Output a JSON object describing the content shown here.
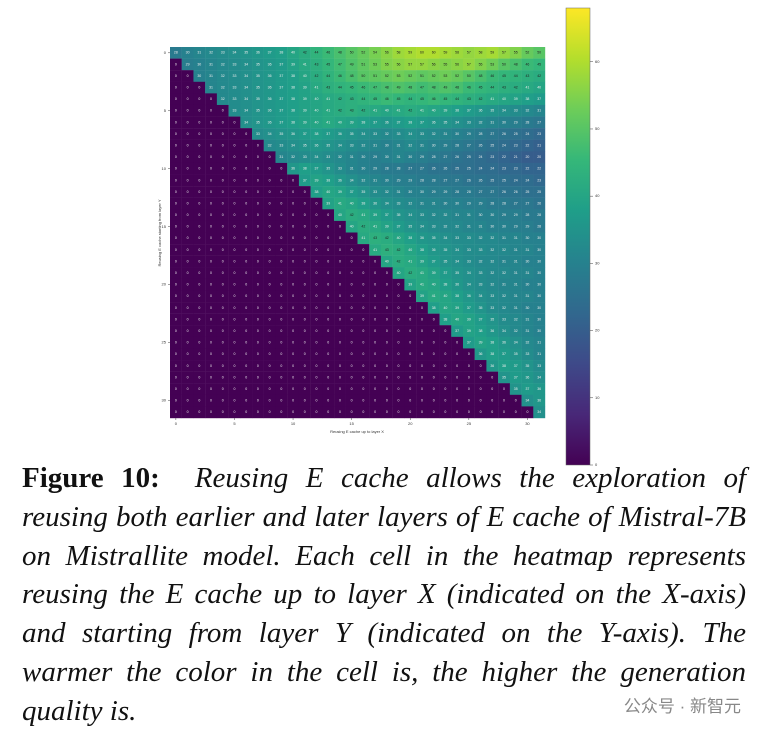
{
  "chart_data": {
    "type": "heatmap",
    "x_label": "Reusing E cache up to layer X",
    "y_label": "Reusing E cache starting from layer Y",
    "xlim": [
      -0.5,
      31.5
    ],
    "ylim": [
      -0.5,
      31.5
    ],
    "xticks": [
      0,
      5,
      10,
      15,
      20,
      25,
      30
    ],
    "yticks": [
      0,
      5,
      10,
      15,
      20,
      25,
      30
    ],
    "colormap": "viridis",
    "zlim": [
      0,
      68
    ],
    "zticks": [
      0,
      10,
      20,
      30,
      40,
      50,
      60
    ],
    "z": [
      [
        28,
        30,
        31,
        32,
        33,
        34,
        35,
        36,
        37,
        38,
        40,
        42,
        44,
        46,
        48,
        50,
        52,
        54,
        56,
        58,
        59,
        60,
        60,
        59,
        58,
        57,
        58,
        59,
        57,
        55,
        52,
        50
      ],
      [
        0,
        29,
        30,
        31,
        32,
        33,
        34,
        35,
        36,
        37,
        39,
        41,
        43,
        45,
        47,
        49,
        51,
        53,
        55,
        56,
        57,
        57,
        56,
        55,
        56,
        57,
        55,
        53,
        50,
        48,
        46,
        45
      ],
      [
        0,
        0,
        30,
        31,
        32,
        33,
        34,
        35,
        36,
        37,
        38,
        40,
        42,
        44,
        46,
        48,
        50,
        51,
        52,
        53,
        52,
        51,
        52,
        53,
        52,
        50,
        48,
        46,
        45,
        44,
        43,
        42
      ],
      [
        0,
        0,
        0,
        31,
        32,
        33,
        34,
        35,
        36,
        37,
        38,
        39,
        41,
        43,
        44,
        45,
        46,
        47,
        48,
        49,
        48,
        47,
        48,
        49,
        48,
        46,
        45,
        44,
        43,
        42,
        41,
        40
      ],
      [
        0,
        0,
        0,
        0,
        32,
        33,
        34,
        35,
        36,
        37,
        38,
        39,
        40,
        41,
        42,
        43,
        44,
        45,
        46,
        45,
        44,
        45,
        46,
        45,
        44,
        43,
        42,
        41,
        40,
        39,
        38,
        37
      ],
      [
        0,
        0,
        0,
        0,
        0,
        33,
        34,
        35,
        36,
        37,
        38,
        39,
        40,
        41,
        42,
        43,
        42,
        41,
        40,
        41,
        42,
        41,
        40,
        39,
        38,
        37,
        36,
        35,
        34,
        33,
        32,
        31
      ],
      [
        0,
        0,
        0,
        0,
        0,
        0,
        34,
        35,
        36,
        37,
        38,
        39,
        40,
        41,
        40,
        39,
        38,
        37,
        36,
        37,
        38,
        37,
        36,
        35,
        34,
        33,
        32,
        31,
        30,
        29,
        28,
        27
      ],
      [
        0,
        0,
        0,
        0,
        0,
        0,
        0,
        33,
        34,
        35,
        36,
        37,
        38,
        37,
        36,
        35,
        34,
        33,
        32,
        33,
        34,
        33,
        32,
        31,
        30,
        29,
        28,
        27,
        26,
        25,
        24,
        23
      ],
      [
        0,
        0,
        0,
        0,
        0,
        0,
        0,
        0,
        32,
        33,
        34,
        35,
        36,
        35,
        34,
        33,
        32,
        31,
        30,
        31,
        32,
        31,
        30,
        29,
        28,
        27,
        26,
        25,
        24,
        23,
        22,
        21
      ],
      [
        0,
        0,
        0,
        0,
        0,
        0,
        0,
        0,
        0,
        31,
        32,
        33,
        34,
        33,
        32,
        31,
        30,
        29,
        30,
        31,
        30,
        29,
        28,
        27,
        26,
        25,
        24,
        23,
        22,
        21,
        20,
        20
      ],
      [
        0,
        0,
        0,
        0,
        0,
        0,
        0,
        0,
        0,
        0,
        36,
        38,
        37,
        35,
        33,
        31,
        30,
        29,
        28,
        28,
        27,
        27,
        26,
        26,
        25,
        25,
        24,
        24,
        23,
        23,
        22,
        22
      ],
      [
        0,
        0,
        0,
        0,
        0,
        0,
        0,
        0,
        0,
        0,
        0,
        37,
        39,
        38,
        36,
        34,
        32,
        31,
        30,
        29,
        29,
        28,
        28,
        27,
        27,
        26,
        26,
        25,
        25,
        24,
        24,
        23
      ],
      [
        0,
        0,
        0,
        0,
        0,
        0,
        0,
        0,
        0,
        0,
        0,
        0,
        38,
        40,
        39,
        37,
        35,
        33,
        32,
        31,
        30,
        30,
        29,
        29,
        28,
        28,
        27,
        27,
        26,
        26,
        25,
        25
      ],
      [
        0,
        0,
        0,
        0,
        0,
        0,
        0,
        0,
        0,
        0,
        0,
        0,
        0,
        39,
        41,
        40,
        38,
        36,
        34,
        33,
        32,
        31,
        31,
        30,
        30,
        29,
        29,
        28,
        28,
        27,
        27,
        26
      ],
      [
        0,
        0,
        0,
        0,
        0,
        0,
        0,
        0,
        0,
        0,
        0,
        0,
        0,
        0,
        40,
        42,
        41,
        39,
        37,
        35,
        34,
        33,
        32,
        32,
        31,
        31,
        30,
        30,
        29,
        29,
        28,
        28
      ],
      [
        0,
        0,
        0,
        0,
        0,
        0,
        0,
        0,
        0,
        0,
        0,
        0,
        0,
        0,
        0,
        40,
        42,
        41,
        39,
        37,
        35,
        34,
        33,
        32,
        32,
        31,
        31,
        30,
        30,
        29,
        29,
        28
      ],
      [
        0,
        0,
        0,
        0,
        0,
        0,
        0,
        0,
        0,
        0,
        0,
        0,
        0,
        0,
        0,
        0,
        41,
        43,
        42,
        40,
        38,
        36,
        35,
        34,
        33,
        33,
        32,
        32,
        31,
        31,
        30,
        30
      ],
      [
        0,
        0,
        0,
        0,
        0,
        0,
        0,
        0,
        0,
        0,
        0,
        0,
        0,
        0,
        0,
        0,
        0,
        41,
        43,
        42,
        40,
        38,
        36,
        35,
        34,
        33,
        33,
        32,
        32,
        31,
        31,
        30
      ],
      [
        0,
        0,
        0,
        0,
        0,
        0,
        0,
        0,
        0,
        0,
        0,
        0,
        0,
        0,
        0,
        0,
        0,
        0,
        40,
        42,
        41,
        39,
        37,
        35,
        34,
        33,
        32,
        32,
        31,
        31,
        30,
        30
      ],
      [
        0,
        0,
        0,
        0,
        0,
        0,
        0,
        0,
        0,
        0,
        0,
        0,
        0,
        0,
        0,
        0,
        0,
        0,
        0,
        40,
        42,
        41,
        39,
        37,
        35,
        34,
        33,
        32,
        32,
        31,
        31,
        30
      ],
      [
        0,
        0,
        0,
        0,
        0,
        0,
        0,
        0,
        0,
        0,
        0,
        0,
        0,
        0,
        0,
        0,
        0,
        0,
        0,
        0,
        39,
        41,
        40,
        38,
        36,
        34,
        33,
        32,
        31,
        31,
        30,
        30
      ],
      [
        0,
        0,
        0,
        0,
        0,
        0,
        0,
        0,
        0,
        0,
        0,
        0,
        0,
        0,
        0,
        0,
        0,
        0,
        0,
        0,
        0,
        39,
        41,
        40,
        38,
        36,
        34,
        33,
        32,
        31,
        31,
        30
      ],
      [
        0,
        0,
        0,
        0,
        0,
        0,
        0,
        0,
        0,
        0,
        0,
        0,
        0,
        0,
        0,
        0,
        0,
        0,
        0,
        0,
        0,
        0,
        38,
        40,
        39,
        37,
        35,
        33,
        32,
        31,
        30,
        30
      ],
      [
        0,
        0,
        0,
        0,
        0,
        0,
        0,
        0,
        0,
        0,
        0,
        0,
        0,
        0,
        0,
        0,
        0,
        0,
        0,
        0,
        0,
        0,
        0,
        38,
        40,
        39,
        37,
        35,
        33,
        32,
        31,
        30
      ],
      [
        0,
        0,
        0,
        0,
        0,
        0,
        0,
        0,
        0,
        0,
        0,
        0,
        0,
        0,
        0,
        0,
        0,
        0,
        0,
        0,
        0,
        0,
        0,
        0,
        37,
        39,
        38,
        36,
        34,
        32,
        31,
        30
      ],
      [
        0,
        0,
        0,
        0,
        0,
        0,
        0,
        0,
        0,
        0,
        0,
        0,
        0,
        0,
        0,
        0,
        0,
        0,
        0,
        0,
        0,
        0,
        0,
        0,
        0,
        37,
        39,
        38,
        36,
        34,
        32,
        31
      ],
      [
        0,
        0,
        0,
        0,
        0,
        0,
        0,
        0,
        0,
        0,
        0,
        0,
        0,
        0,
        0,
        0,
        0,
        0,
        0,
        0,
        0,
        0,
        0,
        0,
        0,
        0,
        36,
        38,
        37,
        35,
        33,
        31
      ],
      [
        0,
        0,
        0,
        0,
        0,
        0,
        0,
        0,
        0,
        0,
        0,
        0,
        0,
        0,
        0,
        0,
        0,
        0,
        0,
        0,
        0,
        0,
        0,
        0,
        0,
        0,
        0,
        36,
        38,
        37,
        35,
        33
      ],
      [
        0,
        0,
        0,
        0,
        0,
        0,
        0,
        0,
        0,
        0,
        0,
        0,
        0,
        0,
        0,
        0,
        0,
        0,
        0,
        0,
        0,
        0,
        0,
        0,
        0,
        0,
        0,
        0,
        35,
        37,
        36,
        34
      ],
      [
        0,
        0,
        0,
        0,
        0,
        0,
        0,
        0,
        0,
        0,
        0,
        0,
        0,
        0,
        0,
        0,
        0,
        0,
        0,
        0,
        0,
        0,
        0,
        0,
        0,
        0,
        0,
        0,
        0,
        35,
        37,
        36
      ],
      [
        0,
        0,
        0,
        0,
        0,
        0,
        0,
        0,
        0,
        0,
        0,
        0,
        0,
        0,
        0,
        0,
        0,
        0,
        0,
        0,
        0,
        0,
        0,
        0,
        0,
        0,
        0,
        0,
        0,
        0,
        34,
        36
      ],
      [
        0,
        0,
        0,
        0,
        0,
        0,
        0,
        0,
        0,
        0,
        0,
        0,
        0,
        0,
        0,
        0,
        0,
        0,
        0,
        0,
        0,
        0,
        0,
        0,
        0,
        0,
        0,
        0,
        0,
        0,
        0,
        34
      ]
    ]
  },
  "caption": {
    "label": "Figure 10:",
    "text": "Reusing E cache allows the exploration of reusing both earlier and later layers of E cache of Mistral-7B on Mistrallite model. Each cell in the heatmap represents reusing the E cache up to layer X (indicated on the X-axis) and starting from layer Y (indicated on the Y-axis). The warmer the color in the cell is, the higher the generation quality is."
  },
  "watermark": "公众号 · 新智元"
}
